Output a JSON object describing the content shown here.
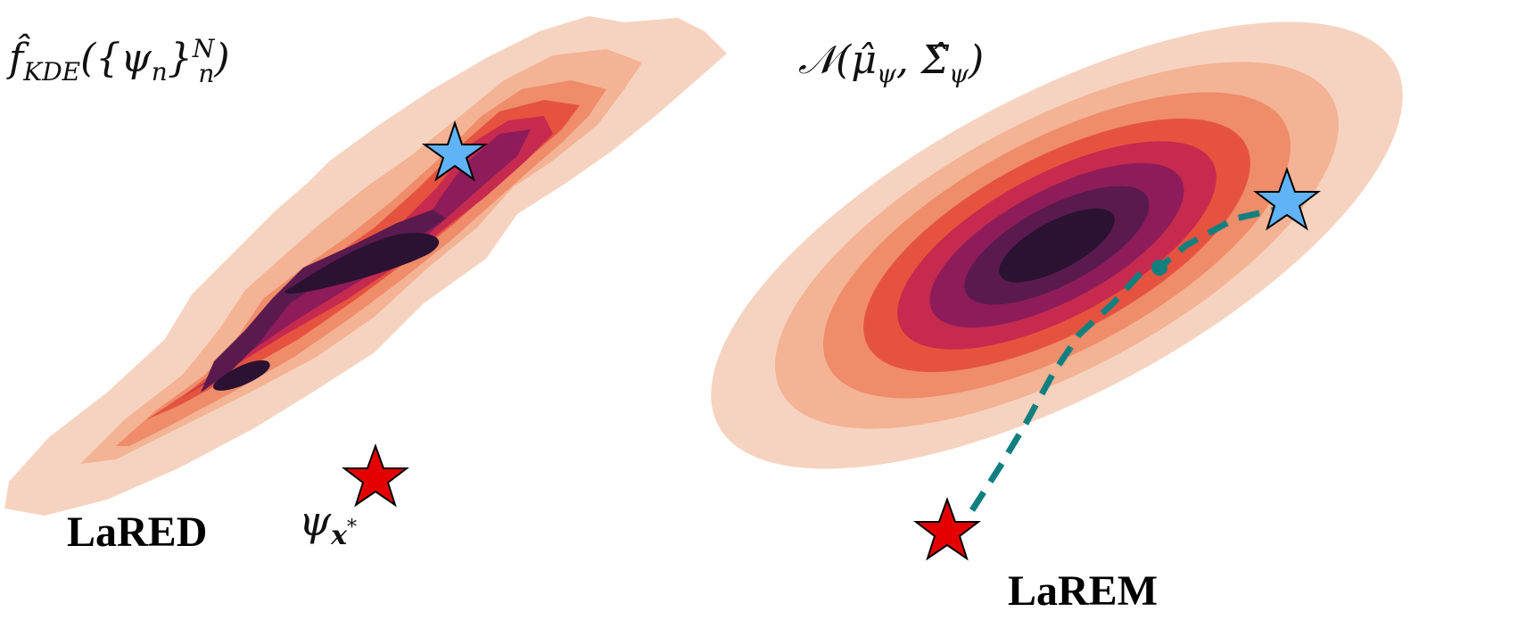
{
  "left_panel": {
    "formula_main": "f̂",
    "formula_sub": "KDE",
    "formula_rest": "({ψ",
    "formula_n": "n",
    "formula_close": "}",
    "formula_sup": "N",
    "formula_sub2": "n",
    "formula_end": ")",
    "method_label": "LaRED",
    "query_symbol": "ψ",
    "query_sub": "x",
    "query_sup": "*"
  },
  "right_panel": {
    "formula_text": "𝒩(μ̂",
    "formula_psi1": "ψ",
    "formula_sep": ", Σ̂",
    "formula_psi2": "ψ",
    "formula_end": ")",
    "method_label": "LaREM"
  },
  "colors": {
    "contour_levels": [
      "#f6d3c0",
      "#f3b394",
      "#ef8c6a",
      "#e5533f",
      "#c62a4e",
      "#8e1c5a",
      "#5a1a4e",
      "#2b1232"
    ],
    "blue_star": "#61b3f7",
    "red_star": "#e50000",
    "path_color": "#127f7f"
  }
}
